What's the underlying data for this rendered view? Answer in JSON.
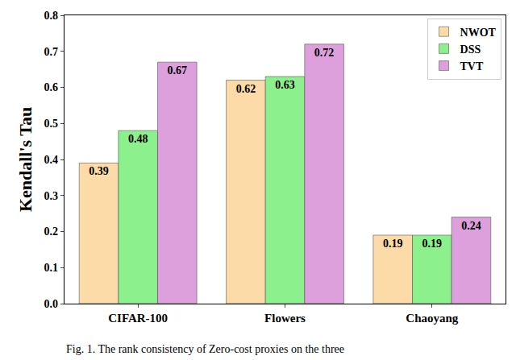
{
  "chart_data": {
    "type": "bar",
    "y_label": "Kendall's Tau",
    "categories": [
      "CIFAR-100",
      "Flowers",
      "Chaoyang"
    ],
    "series": [
      {
        "name": "NWOT",
        "color": "#fddba8",
        "values": [
          0.39,
          0.62,
          0.19
        ]
      },
      {
        "name": "DSS",
        "color": "#8cf08c",
        "values": [
          0.48,
          0.63,
          0.19
        ]
      },
      {
        "name": "TVT",
        "color": "#dda0dd",
        "values": [
          0.67,
          0.72,
          0.24
        ]
      }
    ],
    "ylim": [
      0,
      0.8
    ],
    "yticks": [
      {
        "value": 0,
        "label": "0.0"
      },
      0.1,
      0.2,
      0.3,
      0.4,
      0.5,
      0.6,
      0.7,
      0.8
    ],
    "grid": false,
    "legend": "upper right",
    "data_labels": true,
    "annotations": [
      {
        "text": "Fig. 1. The rank consistency of Zero-cost proxies on the three"
      }
    ]
  }
}
